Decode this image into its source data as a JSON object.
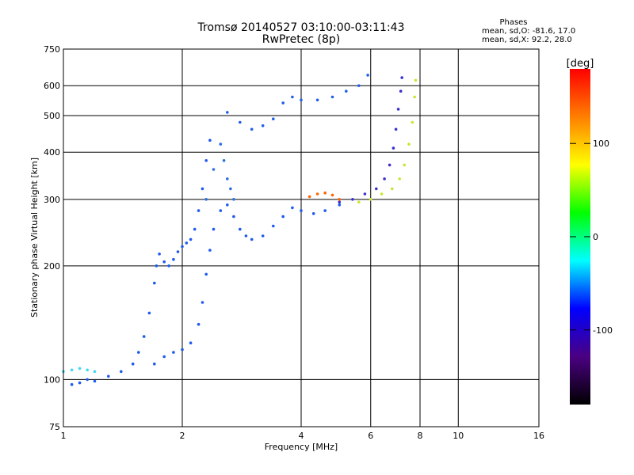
{
  "chart_data": {
    "type": "scatter",
    "title": "Tromsø 20140527 03:10:00-03:11:43",
    "subtitle": "RwPretec (8p)",
    "xlabel": "Frequency [MHz]",
    "ylabel": "Stationary phase Virtual Height [km]",
    "xscale": "log",
    "yscale": "log",
    "xlim": [
      1,
      16
    ],
    "ylim": [
      75,
      750
    ],
    "xticks": [
      1,
      2,
      4,
      6,
      8,
      10,
      16
    ],
    "xtick_labels": [
      "1",
      "2",
      "4",
      "6",
      "8",
      "10",
      "16"
    ],
    "yticks": [
      75,
      100,
      200,
      300,
      400,
      500,
      600,
      750
    ],
    "ytick_labels": [
      "75",
      "100",
      "200",
      "300",
      "400",
      "500",
      "600",
      "750"
    ],
    "grid": true,
    "phase_info": {
      "heading": "Phases",
      "line_o": "mean, sd,O: -81.6, 17.0",
      "line_x": "mean, sd,X:  92.2, 28.0"
    },
    "colorbar": {
      "label": "[deg]",
      "range": [
        -180,
        180
      ],
      "ticks": [
        100,
        0,
        -100
      ],
      "tick_labels": [
        "100",
        "0",
        "-100"
      ],
      "colors": [
        "#ff0000",
        "#ff7f00",
        "#ffff00",
        "#00ff00",
        "#00ffff",
        "#0000ff",
        "#4b0082",
        "#000000"
      ]
    },
    "series": [
      {
        "color": "#1e5af0",
        "x": [
          1.05,
          1.1,
          1.15,
          1.2,
          1.3,
          1.4,
          1.5,
          1.55,
          1.6,
          1.65,
          1.7,
          1.72,
          1.75,
          1.8,
          1.85,
          1.9,
          1.95,
          2.0,
          2.05,
          2.1,
          2.15,
          2.2,
          2.25,
          2.3,
          2.35
        ],
        "y": [
          97,
          98,
          100,
          99,
          102,
          105,
          110,
          118,
          130,
          150,
          180,
          200,
          215,
          205,
          200,
          208,
          218,
          225,
          230,
          235,
          250,
          280,
          320,
          380,
          430
        ]
      },
      {
        "color": "#1e5af0",
        "x": [
          1.7,
          1.8,
          1.9,
          2.0,
          2.1,
          2.2,
          2.25,
          2.3,
          2.35,
          2.4,
          2.5,
          2.6,
          2.7,
          2.8,
          2.9,
          3.0,
          3.2,
          3.4,
          3.6,
          3.8,
          4.0,
          4.3,
          4.6,
          5.0
        ],
        "y": [
          110,
          115,
          118,
          120,
          125,
          140,
          160,
          190,
          220,
          250,
          280,
          290,
          270,
          250,
          240,
          235,
          240,
          255,
          270,
          285,
          280,
          275,
          280,
          290
        ]
      },
      {
        "color": "#2a6fe0",
        "x": [
          2.3,
          2.4,
          2.5,
          2.55,
          2.6,
          2.65,
          2.7
        ],
        "y": [
          300,
          360,
          420,
          380,
          340,
          320,
          300
        ]
      },
      {
        "color": "#2060e8",
        "x": [
          2.6,
          2.8,
          3.0,
          3.2,
          3.4,
          3.6,
          3.8,
          4.0,
          4.4,
          4.8,
          5.2,
          5.6,
          5.9
        ],
        "y": [
          510,
          480,
          460,
          470,
          490,
          540,
          560,
          550,
          550,
          560,
          580,
          600,
          640
        ]
      },
      {
        "color": "#3a30d0",
        "x": [
          5.0,
          5.4,
          5.8,
          6.2,
          6.5,
          6.7,
          6.85,
          6.95,
          7.05,
          7.15,
          7.2
        ],
        "y": [
          295,
          300,
          310,
          320,
          340,
          370,
          410,
          460,
          520,
          580,
          630
        ]
      },
      {
        "color": "#c8e630",
        "x": [
          5.6,
          6.0,
          6.4,
          6.8,
          7.1,
          7.3,
          7.5,
          7.65,
          7.75,
          7.8
        ],
        "y": [
          295,
          300,
          310,
          320,
          340,
          370,
          420,
          480,
          560,
          620
        ]
      },
      {
        "color": "#ff6400",
        "x": [
          4.2,
          4.4,
          4.6,
          4.8,
          5.0
        ],
        "y": [
          305,
          310,
          312,
          308,
          300
        ]
      },
      {
        "color": "#40d8f0",
        "x": [
          1.0,
          1.05,
          1.1,
          1.15,
          1.2
        ],
        "y": [
          105,
          106,
          107,
          106,
          105
        ]
      }
    ]
  }
}
